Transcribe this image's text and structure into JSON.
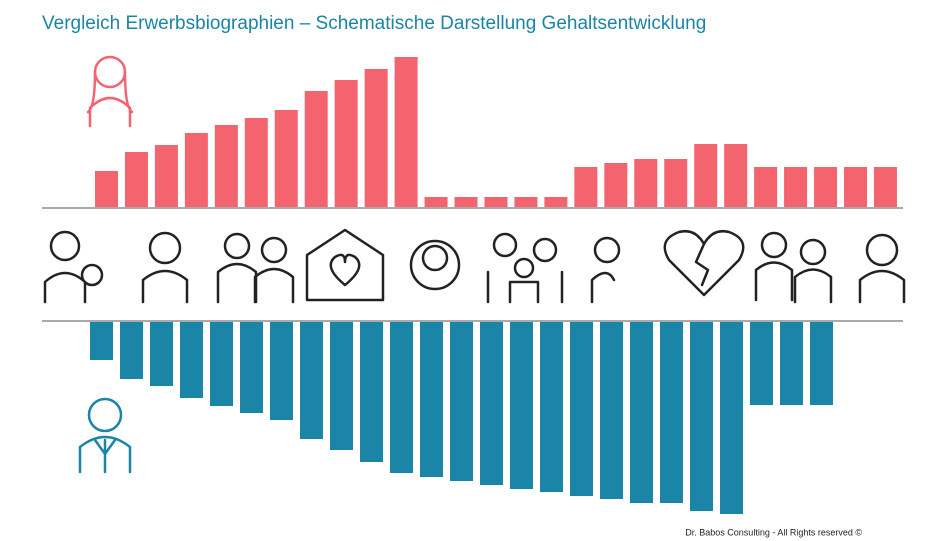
{
  "chart_data": {
    "type": "diverging-bar",
    "title": "Vergleich Erwerbsbiographien – Schematische Darstellung Gehaltsentwicklung",
    "footer": "Dr. Babos Consulting - All Rights reserved ©",
    "series": [
      {
        "color": "#f4646e",
        "values": [
          36,
          55,
          62,
          74,
          82,
          89,
          97,
          116,
          127,
          138,
          150,
          10,
          10,
          10,
          10,
          10,
          40,
          44,
          48,
          48,
          63,
          63,
          40,
          40,
          40,
          40,
          40
        ]
      },
      {
        "color": "#1a85a6",
        "values": [
          38,
          57,
          64,
          76,
          84,
          91,
          98,
          117,
          128,
          140,
          151,
          155,
          159,
          163,
          167,
          170,
          174,
          177,
          181,
          181,
          189,
          192,
          83,
          83,
          83
        ]
      }
    ]
  }
}
